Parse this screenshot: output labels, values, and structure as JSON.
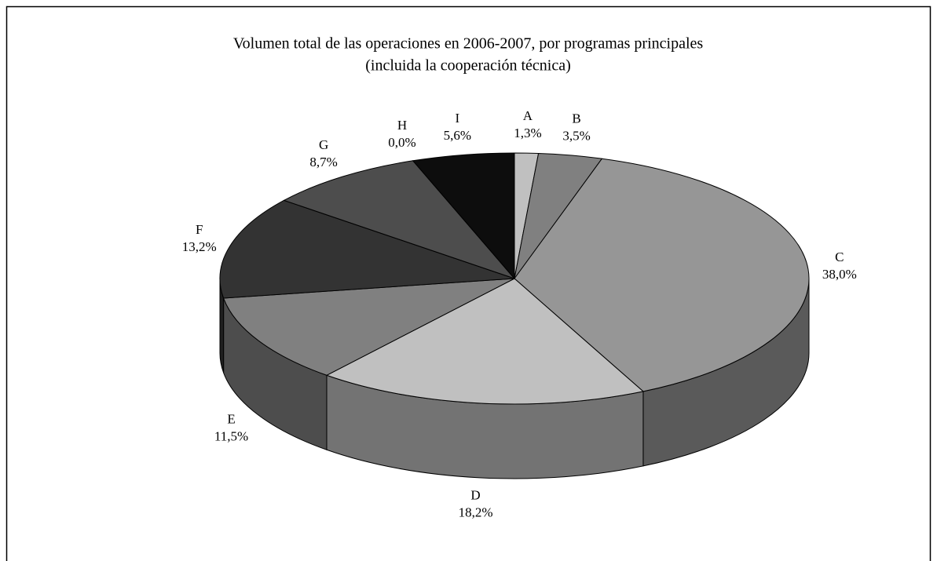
{
  "chart_data": {
    "type": "pie3d",
    "title": "Volumen total de las operaciones en 2006-2007, por programas principales",
    "subtitle": "(incluida la cooperación técnica)",
    "categories": [
      "A",
      "B",
      "C",
      "D",
      "E",
      "F",
      "G",
      "H",
      "I"
    ],
    "values": [
      1.3,
      3.5,
      38.0,
      18.2,
      11.5,
      13.2,
      8.7,
      0.0,
      5.6
    ],
    "value_labels": [
      "1,3%",
      "3,5%",
      "38,0%",
      "18,2%",
      "11,5%",
      "13,2%",
      "8,7%",
      "0,0%",
      "5,6%"
    ],
    "colors": [
      "#c0c0c0",
      "#808080",
      "#969696",
      "#c0c0c0",
      "#808080",
      "#333333",
      "#4d4d4d",
      "#1a1a1a",
      "#0d0d0d"
    ]
  }
}
